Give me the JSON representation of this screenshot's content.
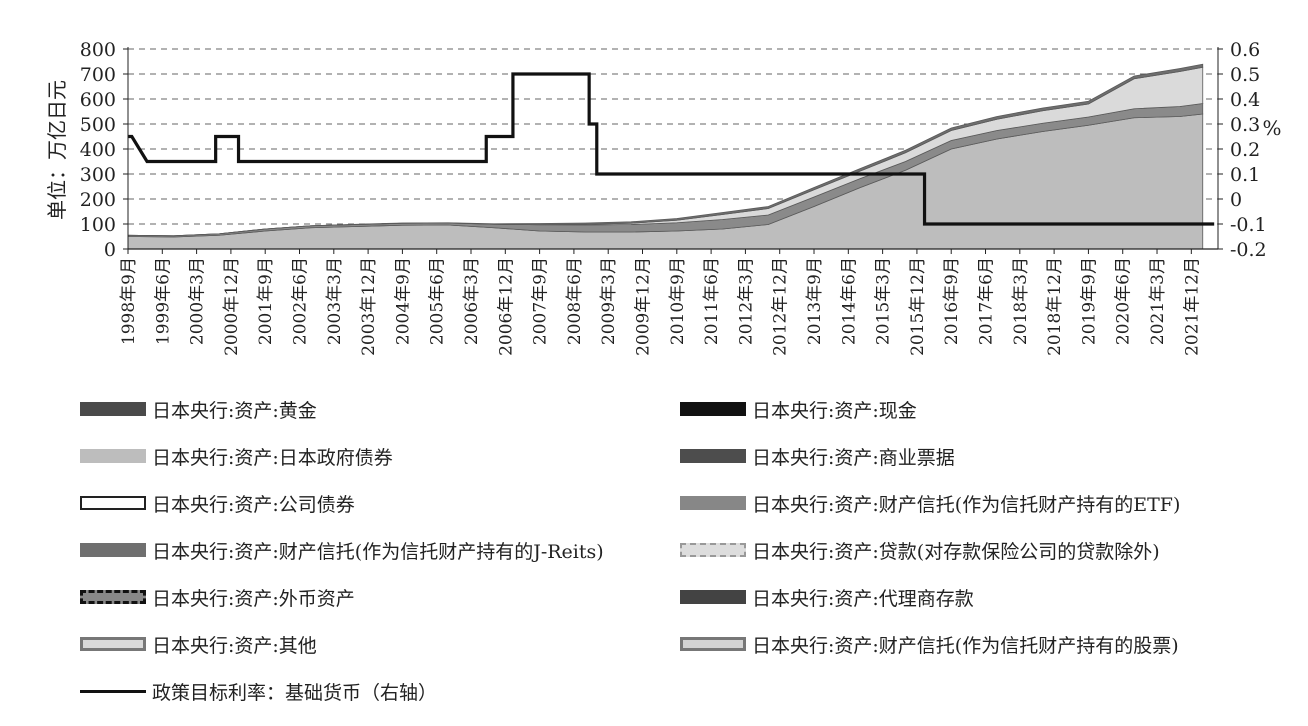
{
  "chart_data": {
    "type": "area",
    "ylabel": "单位：万亿日元",
    "y2label": "%",
    "ylim": [
      0,
      800
    ],
    "y2lim": [
      -0.2,
      0.6
    ],
    "yticks": [
      0,
      100,
      200,
      300,
      400,
      500,
      600,
      700,
      800
    ],
    "y2ticks": [
      "0.6",
      "0.5",
      "0.4",
      "0.3",
      "0.2",
      "0.1",
      "0",
      "-0.1",
      "-0.2"
    ],
    "grid": "horizontal dashed",
    "xticks": [
      "1998年9月",
      "1999年6月",
      "2000年3月",
      "2000年12月",
      "2001年9月",
      "2002年6月",
      "2003年3月",
      "2003年12月",
      "2004年9月",
      "2005年6月",
      "2006年3月",
      "2006年12月",
      "2007年9月",
      "2008年6月",
      "2009年3月",
      "2009年12月",
      "2010年9月",
      "2011年6月",
      "2012年3月",
      "2012年12月",
      "2013年9月",
      "2014年6月",
      "2015年3月",
      "2015年12月",
      "2016年9月",
      "2017年6月",
      "2018年3月",
      "2018年12月",
      "2019年9月",
      "2020年6月",
      "2021年3月",
      "2021年12月"
    ],
    "x": [
      "1998-09",
      "1999-09",
      "2000-09",
      "2001-09",
      "2002-09",
      "2003-09",
      "2004-09",
      "2005-09",
      "2006-09",
      "2007-09",
      "2008-09",
      "2009-09",
      "2010-09",
      "2011-09",
      "2012-09",
      "2013-09",
      "2014-09",
      "2015-09",
      "2016-09",
      "2017-09",
      "2018-09",
      "2019-09",
      "2020-09",
      "2021-09",
      "2022-03"
    ],
    "stack": {
      "government_bonds": [
        50,
        48,
        55,
        72,
        85,
        90,
        95,
        96,
        85,
        72,
        68,
        68,
        72,
        80,
        98,
        170,
        245,
        315,
        400,
        440,
        470,
        495,
        525,
        530,
        540
      ],
      "bills_and_loans": [
        5,
        5,
        6,
        8,
        8,
        8,
        8,
        8,
        14,
        25,
        28,
        30,
        33,
        38,
        38,
        38,
        36,
        35,
        34,
        34,
        33,
        33,
        36,
        40,
        42
      ],
      "loans_excluding_dic": [
        0,
        0,
        0,
        0,
        0,
        0,
        0,
        0,
        0,
        0,
        3,
        5,
        10,
        20,
        26,
        29,
        30,
        35,
        40,
        45,
        50,
        52,
        120,
        140,
        145
      ],
      "others": [
        0,
        0,
        0,
        0,
        0,
        1,
        1,
        1,
        2,
        5,
        5,
        6,
        7,
        8,
        8,
        9,
        10,
        10,
        10,
        11,
        11,
        11,
        11,
        12,
        12
      ]
    },
    "policy_rate": {
      "name": "政策目标利率：基础货币（右轴）",
      "points": [
        [
          "1998-09",
          0.25
        ],
        [
          "1998-10",
          0.25
        ],
        [
          "1999-02",
          0.15
        ],
        [
          "2000-08",
          0.15
        ],
        [
          "2000-08",
          0.25
        ],
        [
          "2001-02",
          0.25
        ],
        [
          "2001-02",
          0.15
        ],
        [
          "2006-07",
          0.15
        ],
        [
          "2006-07",
          0.25
        ],
        [
          "2007-02",
          0.25
        ],
        [
          "2007-02",
          0.5
        ],
        [
          "2008-10",
          0.5
        ],
        [
          "2008-10",
          0.3
        ],
        [
          "2008-12",
          0.3
        ],
        [
          "2008-12",
          0.1
        ],
        [
          "2016-02",
          0.1
        ],
        [
          "2016-02",
          -0.1
        ],
        [
          "2022-06",
          -0.1
        ]
      ]
    },
    "legend_position": "bottom",
    "legend": [
      {
        "label": "日本央行:资产:黄金",
        "swatch": "solid",
        "color": "#4a4a4a"
      },
      {
        "label": "日本央行:资产:现金",
        "swatch": "solid",
        "color": "#111111"
      },
      {
        "label": "日本央行:资产:日本政府债券",
        "swatch": "solid",
        "color": "#bdbdbd"
      },
      {
        "label": "日本央行:资产:商业票据",
        "swatch": "solid",
        "color": "#4d4d4d"
      },
      {
        "label": "日本央行:资产:公司债券",
        "swatch": "outline",
        "color": "#ffffff"
      },
      {
        "label": "日本央行:资产:财产信托(作为信托财产持有的ETF)",
        "swatch": "solid",
        "color": "#878787"
      },
      {
        "label": "日本央行:资产:财产信托(作为信托财产持有的J-Reits)",
        "swatch": "solid",
        "color": "#6f6f6f"
      },
      {
        "label": "日本央行:资产:贷款(对存款保险公司的贷款除外)",
        "swatch": "dashed-light",
        "color": "#dddddd"
      },
      {
        "label": "日本央行:资产:外币资产",
        "swatch": "dashed-dark",
        "color": "#888888"
      },
      {
        "label": "日本央行:资产:代理商存款",
        "swatch": "solid",
        "color": "#434343"
      },
      {
        "label": "日本央行:资产:其他",
        "swatch": "outline-light",
        "color": "#d9d9d9"
      },
      {
        "label": "日本央行:资产:财产信托(作为信托财产持有的股票)",
        "swatch": "outline-light",
        "color": "#d3d3d3"
      },
      {
        "label": "政策目标利率：基础货币（右轴）",
        "swatch": "line",
        "color": "#111111"
      }
    ],
    "colors": {
      "gov": "#bdbdbd",
      "bills": "#8a8a8a",
      "loans": "#dadada",
      "others": "#6e6e6e",
      "rate": "#111111",
      "grid": "#666666"
    }
  }
}
